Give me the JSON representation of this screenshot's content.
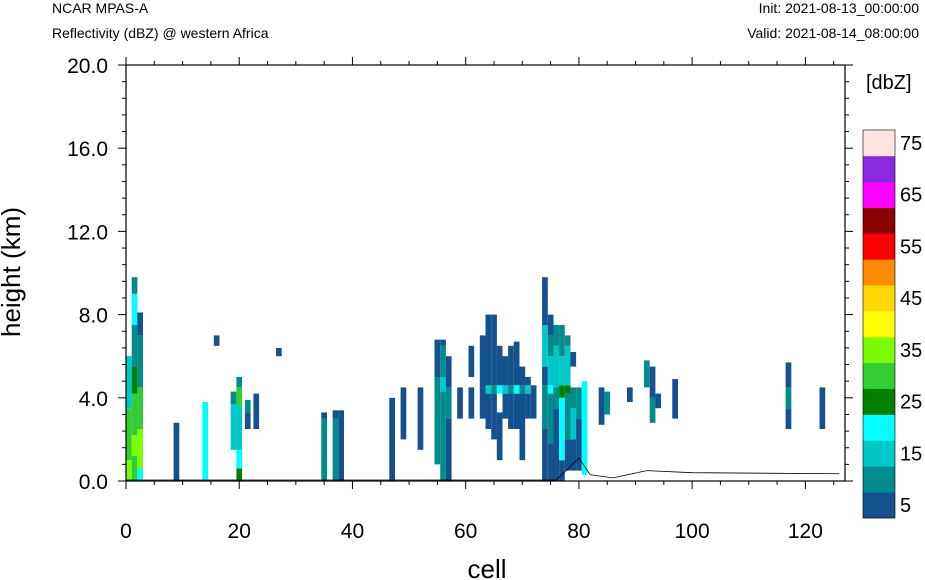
{
  "header": {
    "top_left": "NCAR MPAS-A",
    "subtitle": "Reflectivity (dBZ) @ western Africa",
    "init": "Init: 2021-08-13_00:00:00",
    "valid": "Valid: 2021-08-14_08:00:00"
  },
  "chart_data": {
    "type": "heatmap",
    "title": "Reflectivity (dBZ) @ western Africa",
    "xlabel": "cell",
    "ylabel": "height (km)",
    "xlim": [
      0,
      127
    ],
    "ylim": [
      0,
      20
    ],
    "x_ticks": [
      "0",
      "20",
      "40",
      "60",
      "80",
      "100",
      "120"
    ],
    "y_ticks": [
      "0.0",
      "4.0",
      "8.0",
      "12.0",
      "16.0",
      "20.0"
    ],
    "colorbar": {
      "title": "[dbZ]",
      "labels": [
        "5",
        "15",
        "25",
        "35",
        "45",
        "55",
        "65",
        "75"
      ],
      "levels": [
        5,
        10,
        15,
        20,
        25,
        30,
        35,
        40,
        45,
        50,
        55,
        60,
        65,
        70,
        75
      ],
      "colors": [
        "#15508f",
        "#008c8c",
        "#00c8c8",
        "#00ffff",
        "#008000",
        "#32cd32",
        "#7cfc00",
        "#ffff00",
        "#ffd700",
        "#ff8c00",
        "#ff0000",
        "#8b0000",
        "#ff00ff",
        "#8a2be2",
        "#ffe4e1"
      ]
    },
    "columns": [
      {
        "x": 0.5,
        "segments": [
          [
            0,
            1,
            "#7cfc00"
          ],
          [
            1,
            3.5,
            "#32cd32"
          ],
          [
            3.5,
            6,
            "#00c8c8"
          ]
        ]
      },
      {
        "x": 1.5,
        "segments": [
          [
            0,
            1.2,
            "#32cd32"
          ],
          [
            1.2,
            2.2,
            "#7cfc00"
          ],
          [
            2.2,
            4.2,
            "#32cd32"
          ],
          [
            4.2,
            5.5,
            "#008000"
          ],
          [
            5.5,
            7.5,
            "#008c8c"
          ],
          [
            7.5,
            9,
            "#00ffff"
          ],
          [
            9,
            9.8,
            "#008c8c"
          ]
        ]
      },
      {
        "x": 2.5,
        "segments": [
          [
            0,
            0.6,
            "#00ffff"
          ],
          [
            0.6,
            2.5,
            "#7cfc00"
          ],
          [
            2.5,
            4.5,
            "#32cd32"
          ],
          [
            4.5,
            7,
            "#008c8c"
          ],
          [
            7,
            8.1,
            "#15508f"
          ]
        ]
      },
      {
        "x": 8.9,
        "segments": [
          [
            0,
            2.8,
            "#15508f"
          ]
        ]
      },
      {
        "x": 14,
        "segments": [
          [
            0,
            3.8,
            "#00ffff"
          ]
        ]
      },
      {
        "x": 16,
        "segments": [
          [
            6.5,
            7,
            "#15508f"
          ]
        ]
      },
      {
        "x": 19,
        "segments": [
          [
            1.5,
            3.7,
            "#00c8c8"
          ],
          [
            3.7,
            4.3,
            "#008c8c"
          ]
        ]
      },
      {
        "x": 20,
        "segments": [
          [
            0,
            0.6,
            "#008000"
          ],
          [
            0.6,
            1.5,
            "#00ffff"
          ],
          [
            1.5,
            3.6,
            "#00c8c8"
          ],
          [
            3.6,
            4.5,
            "#32cd32"
          ],
          [
            4.5,
            5,
            "#008c8c"
          ]
        ]
      },
      {
        "x": 21.5,
        "segments": [
          [
            2.5,
            3.3,
            "#15508f"
          ],
          [
            3.3,
            3.9,
            "#008c8c"
          ]
        ]
      },
      {
        "x": 23,
        "segments": [
          [
            2.5,
            4.2,
            "#15508f"
          ]
        ]
      },
      {
        "x": 27,
        "segments": [
          [
            6,
            6.4,
            "#15508f"
          ]
        ]
      },
      {
        "x": 35,
        "segments": [
          [
            0,
            3,
            "#008c8c"
          ],
          [
            3,
            3.3,
            "#15508f"
          ]
        ]
      },
      {
        "x": 37,
        "segments": [
          [
            0,
            3,
            "#008c8c"
          ],
          [
            3,
            3.4,
            "#15508f"
          ]
        ]
      },
      {
        "x": 38,
        "segments": [
          [
            0,
            3.4,
            "#15508f"
          ]
        ]
      },
      {
        "x": 47,
        "segments": [
          [
            0,
            4,
            "#15508f"
          ]
        ]
      },
      {
        "x": 49,
        "segments": [
          [
            2,
            4.5,
            "#15508f"
          ]
        ]
      },
      {
        "x": 52,
        "segments": [
          [
            1.5,
            4.5,
            "#15508f"
          ]
        ]
      },
      {
        "x": 55,
        "segments": [
          [
            0.8,
            5,
            "#008c8c"
          ],
          [
            5,
            6.8,
            "#15508f"
          ]
        ]
      },
      {
        "x": 56,
        "segments": [
          [
            0,
            4.3,
            "#008c8c"
          ],
          [
            4.3,
            5,
            "#00c8c8"
          ],
          [
            5,
            6.5,
            "#008c8c"
          ],
          [
            6.5,
            6.8,
            "#15508f"
          ]
        ]
      },
      {
        "x": 57,
        "segments": [
          [
            0,
            3,
            "#15508f"
          ],
          [
            3,
            4.5,
            "#008c8c"
          ],
          [
            4.5,
            6,
            "#15508f"
          ]
        ]
      },
      {
        "x": 59,
        "segments": [
          [
            3,
            4.5,
            "#15508f"
          ]
        ]
      },
      {
        "x": 61,
        "segments": [
          [
            3,
            4.5,
            "#15508f"
          ],
          [
            5,
            6.5,
            "#15508f"
          ]
        ]
      },
      {
        "x": 63,
        "segments": [
          [
            3,
            4.5,
            "#15508f"
          ],
          [
            4.5,
            7,
            "#15508f"
          ]
        ]
      },
      {
        "x": 64,
        "segments": [
          [
            2.5,
            4.2,
            "#15508f"
          ],
          [
            4.2,
            4.6,
            "#00c8c8"
          ],
          [
            4.6,
            8,
            "#15508f"
          ]
        ]
      },
      {
        "x": 65,
        "segments": [
          [
            2,
            4.2,
            "#15508f"
          ],
          [
            4.2,
            4.6,
            "#008c8c"
          ],
          [
            4.6,
            8,
            "#15508f"
          ]
        ]
      },
      {
        "x": 66,
        "segments": [
          [
            1,
            3.3,
            "#15508f"
          ],
          [
            4.2,
            4.6,
            "#00ffff"
          ],
          [
            4.6,
            6.5,
            "#15508f"
          ]
        ]
      },
      {
        "x": 67,
        "segments": [
          [
            3,
            4.2,
            "#15508f"
          ],
          [
            4.2,
            4.6,
            "#00c8c8"
          ],
          [
            4.6,
            6,
            "#15508f"
          ]
        ]
      },
      {
        "x": 68,
        "segments": [
          [
            2.5,
            4.2,
            "#15508f"
          ],
          [
            4.2,
            4.6,
            "#008c8c"
          ],
          [
            4.6,
            6.5,
            "#15508f"
          ]
        ]
      },
      {
        "x": 69,
        "segments": [
          [
            2.5,
            4.2,
            "#15508f"
          ],
          [
            4.2,
            4.6,
            "#00ffff"
          ],
          [
            4.6,
            6.7,
            "#15508f"
          ]
        ]
      },
      {
        "x": 70,
        "segments": [
          [
            1,
            4.2,
            "#15508f"
          ],
          [
            4.2,
            4.6,
            "#008c8c"
          ],
          [
            4.6,
            5.5,
            "#15508f"
          ]
        ]
      },
      {
        "x": 71,
        "segments": [
          [
            3,
            4.2,
            "#15508f"
          ],
          [
            4.2,
            4.6,
            "#00c8c8"
          ],
          [
            4.6,
            5,
            "#15508f"
          ]
        ]
      },
      {
        "x": 72,
        "segments": [
          [
            3,
            4.6,
            "#15508f"
          ]
        ]
      },
      {
        "x": 74,
        "segments": [
          [
            0,
            2.5,
            "#15508f"
          ],
          [
            2.5,
            4.6,
            "#008c8c"
          ],
          [
            4.6,
            5.5,
            "#15508f"
          ],
          [
            5.5,
            7.5,
            "#00c8c8"
          ],
          [
            7.5,
            9.8,
            "#15508f"
          ]
        ]
      },
      {
        "x": 75,
        "segments": [
          [
            0,
            1.8,
            "#15508f"
          ],
          [
            1.8,
            4.2,
            "#008c8c"
          ],
          [
            4.2,
            4.6,
            "#00ffff"
          ],
          [
            4.6,
            6,
            "#00c8c8"
          ],
          [
            6,
            7,
            "#008c8c"
          ],
          [
            7,
            8,
            "#15508f"
          ]
        ]
      },
      {
        "x": 76,
        "segments": [
          [
            0,
            3.5,
            "#15508f"
          ],
          [
            3.5,
            4.5,
            "#008c8c"
          ],
          [
            4.5,
            6.5,
            "#00c8c8"
          ],
          [
            6.5,
            7.5,
            "#008c8c"
          ]
        ]
      },
      {
        "x": 77,
        "segments": [
          [
            0,
            1,
            "#15508f"
          ],
          [
            1,
            4,
            "#00ffff"
          ],
          [
            4,
            4.6,
            "#008000"
          ],
          [
            4.6,
            6,
            "#00c8c8"
          ],
          [
            6,
            7.5,
            "#008c8c"
          ]
        ]
      },
      {
        "x": 78,
        "segments": [
          [
            0.5,
            2,
            "#15508f"
          ],
          [
            2,
            4.2,
            "#008c8c"
          ],
          [
            4.2,
            4.6,
            "#008000"
          ],
          [
            4.6,
            6.5,
            "#00c8c8"
          ],
          [
            6.5,
            7,
            "#008c8c"
          ]
        ]
      },
      {
        "x": 79,
        "segments": [
          [
            0.5,
            2,
            "#15508f"
          ],
          [
            2,
            3.5,
            "#00c8c8"
          ],
          [
            3.5,
            4.5,
            "#008c8c"
          ],
          [
            5.5,
            6.2,
            "#15508f"
          ]
        ]
      },
      {
        "x": 80,
        "segments": [
          [
            0.5,
            3,
            "#15508f"
          ],
          [
            3,
            4.5,
            "#008c8c"
          ]
        ]
      },
      {
        "x": 81,
        "segments": [
          [
            0.3,
            4.8,
            "#00ffff"
          ]
        ]
      },
      {
        "x": 84,
        "segments": [
          [
            2.7,
            4.5,
            "#15508f"
          ]
        ]
      },
      {
        "x": 85,
        "segments": [
          [
            3.2,
            4.3,
            "#008c8c"
          ]
        ]
      },
      {
        "x": 89,
        "segments": [
          [
            3.8,
            4.5,
            "#15508f"
          ]
        ]
      },
      {
        "x": 92,
        "segments": [
          [
            4.5,
            5.8,
            "#008c8c"
          ]
        ]
      },
      {
        "x": 93,
        "segments": [
          [
            2.8,
            4,
            "#008c8c"
          ],
          [
            4,
            5.5,
            "#15508f"
          ]
        ]
      },
      {
        "x": 94,
        "segments": [
          [
            3.5,
            4.2,
            "#15508f"
          ]
        ]
      },
      {
        "x": 97,
        "segments": [
          [
            3,
            4.9,
            "#15508f"
          ]
        ]
      },
      {
        "x": 117,
        "segments": [
          [
            2.5,
            3.5,
            "#15508f"
          ],
          [
            3.5,
            4.5,
            "#008c8c"
          ],
          [
            4.5,
            5.7,
            "#15508f"
          ]
        ]
      },
      {
        "x": 123,
        "segments": [
          [
            2.5,
            4.5,
            "#15508f"
          ]
        ]
      }
    ]
  }
}
